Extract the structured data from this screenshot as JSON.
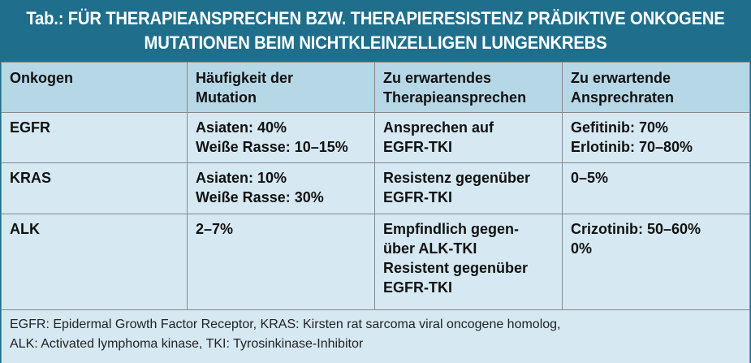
{
  "title": {
    "line1": "Tab.: FÜR THERAPIEANSPRECHEN BZW. THERAPIERESISTENZ PRÄDIKTIVE ONKOGENE",
    "line2": "MUTATIONEN BEIM NICHTKLEINZELLIGEN LUNGENKREBS"
  },
  "header": {
    "col1": [
      "Onkogen"
    ],
    "col2": [
      "Häufigkeit der",
      "Mutation"
    ],
    "col3": [
      "Zu erwartendes",
      "Therapieansprechen"
    ],
    "col4": [
      "Zu erwartende",
      "Ansprechraten"
    ]
  },
  "rows": [
    {
      "oncogene": "EGFR",
      "frequency": [
        "Asiaten: 40%",
        "Weiße Rasse: 10–15%"
      ],
      "response": [
        "Ansprechen auf",
        "EGFR-TKI"
      ],
      "rates": [
        "Gefitinib: 70%",
        "Erlotinib: 70–80%"
      ]
    },
    {
      "oncogene": "KRAS",
      "frequency": [
        "Asiaten: 10%",
        "Weiße Rasse: 30%"
      ],
      "response": [
        "Resistenz gegenüber",
        "EGFR-TKI"
      ],
      "rates": [
        "0–5%"
      ]
    },
    {
      "oncogene": "ALK",
      "frequency": [
        "2–7%"
      ],
      "response": [
        "Empfindlich gegen-",
        "über ALK-TKI",
        "Resistent gegenüber",
        "EGFR-TKI"
      ],
      "rates": [
        "Crizotinib: 50–60%",
        "0%"
      ]
    }
  ],
  "footnote": {
    "line1": "EGFR: Epidermal Growth Factor Receptor, KRAS: Kirsten rat sarcoma viral oncogene homolog,",
    "line2": "ALK: Activated lymphoma kinase, TKI: Tyrosinkinase-Inhibitor"
  },
  "colors": {
    "title_bar": "#1f6f8c",
    "header_bg": "#b6d7e6",
    "body_bg": "#d6e9f3"
  }
}
